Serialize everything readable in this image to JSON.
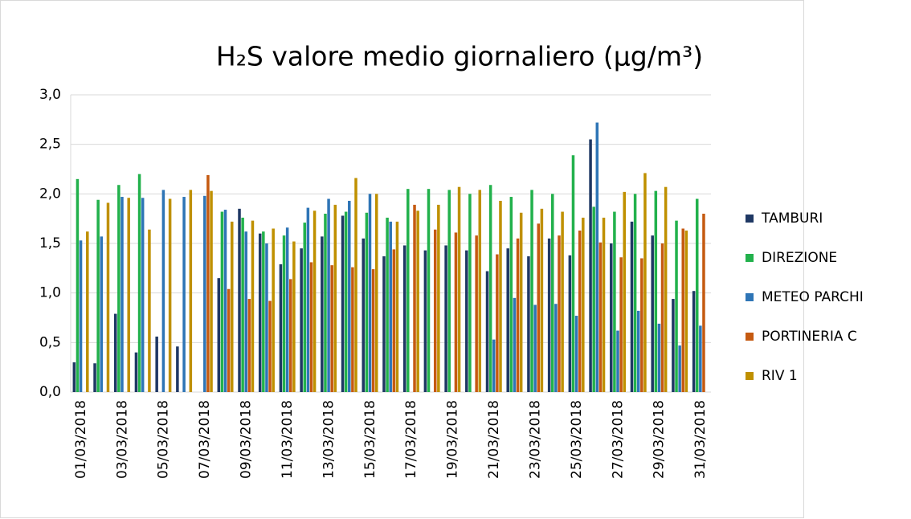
{
  "chart_data": {
    "type": "bar",
    "title": "H₂S valore medio giornaliero (µg/m³)",
    "categories": [
      "01/03/2018",
      null,
      "03/03/2018",
      null,
      "05/03/2018",
      null,
      "07/03/2018",
      null,
      "09/03/2018",
      null,
      "11/03/2018",
      null,
      "13/03/2018",
      null,
      "15/03/2018",
      null,
      "17/03/2018",
      null,
      "19/03/2018",
      null,
      "21/03/2018",
      null,
      "23/03/2018",
      null,
      "25/03/2018",
      null,
      "27/03/2018",
      null,
      "29/03/2018",
      null,
      "31/03/2018"
    ],
    "series": [
      {
        "name": "TAMBURI",
        "color": "#1f3864",
        "values": [
          0.3,
          0.29,
          0.79,
          0.4,
          0.56,
          0.46,
          null,
          1.15,
          1.85,
          1.6,
          1.29,
          1.45,
          1.57,
          1.78,
          1.55,
          1.37,
          1.48,
          1.43,
          1.48,
          1.43,
          1.22,
          1.45,
          1.37,
          1.55,
          1.38,
          2.55,
          1.5,
          1.72,
          1.58,
          0.94,
          1.02
        ]
      },
      {
        "name": "DIREZIONE",
        "color": "#22b14c",
        "values": [
          2.15,
          1.94,
          2.09,
          2.2,
          null,
          null,
          null,
          1.82,
          1.76,
          1.62,
          1.58,
          1.71,
          1.8,
          1.82,
          1.81,
          1.76,
          2.05,
          2.05,
          2.04,
          2.0,
          2.09,
          1.97,
          2.04,
          2.0,
          2.39,
          1.87,
          1.82,
          2.0,
          2.03,
          1.73,
          1.95
        ]
      },
      {
        "name": "METEO PARCHI",
        "color": "#2e75b6",
        "values": [
          1.53,
          1.57,
          1.97,
          1.96,
          2.04,
          1.97,
          1.98,
          1.84,
          1.62,
          1.5,
          1.66,
          1.86,
          1.95,
          1.93,
          2.0,
          1.72,
          null,
          null,
          null,
          null,
          0.53,
          0.95,
          0.88,
          0.89,
          0.77,
          2.72,
          0.62,
          0.82,
          0.69,
          0.47,
          0.67
        ]
      },
      {
        "name": "PORTINERIA C",
        "color": "#c55a11",
        "values": [
          null,
          null,
          null,
          null,
          null,
          null,
          2.19,
          1.04,
          0.94,
          0.92,
          1.14,
          1.31,
          1.28,
          1.26,
          1.24,
          1.44,
          1.89,
          1.64,
          1.61,
          1.58,
          1.39,
          1.55,
          1.7,
          1.58,
          1.63,
          1.51,
          1.36,
          1.35,
          1.5,
          1.65,
          1.8
        ]
      },
      {
        "name": "RIV 1",
        "color": "#bf9000",
        "values": [
          1.62,
          1.91,
          1.96,
          1.64,
          1.95,
          2.04,
          2.03,
          1.72,
          1.73,
          1.65,
          1.52,
          1.83,
          1.89,
          2.16,
          2.0,
          1.72,
          1.83,
          1.89,
          2.07,
          2.04,
          1.93,
          1.81,
          1.85,
          1.82,
          1.76,
          1.76,
          2.02,
          2.21,
          2.07,
          1.63,
          null
        ]
      }
    ],
    "ylim": [
      0,
      3
    ],
    "yticks": [
      {
        "value": 0,
        "label": "0,0"
      },
      {
        "value": 0.5,
        "label": "0,5"
      },
      {
        "value": 1,
        "label": "1,0"
      },
      {
        "value": 1.5,
        "label": "1,5"
      },
      {
        "value": 2,
        "label": "2,0"
      },
      {
        "value": 2.5,
        "label": "2,5"
      },
      {
        "value": 3,
        "label": "3,0"
      }
    ],
    "grid": true,
    "legend": "right"
  }
}
